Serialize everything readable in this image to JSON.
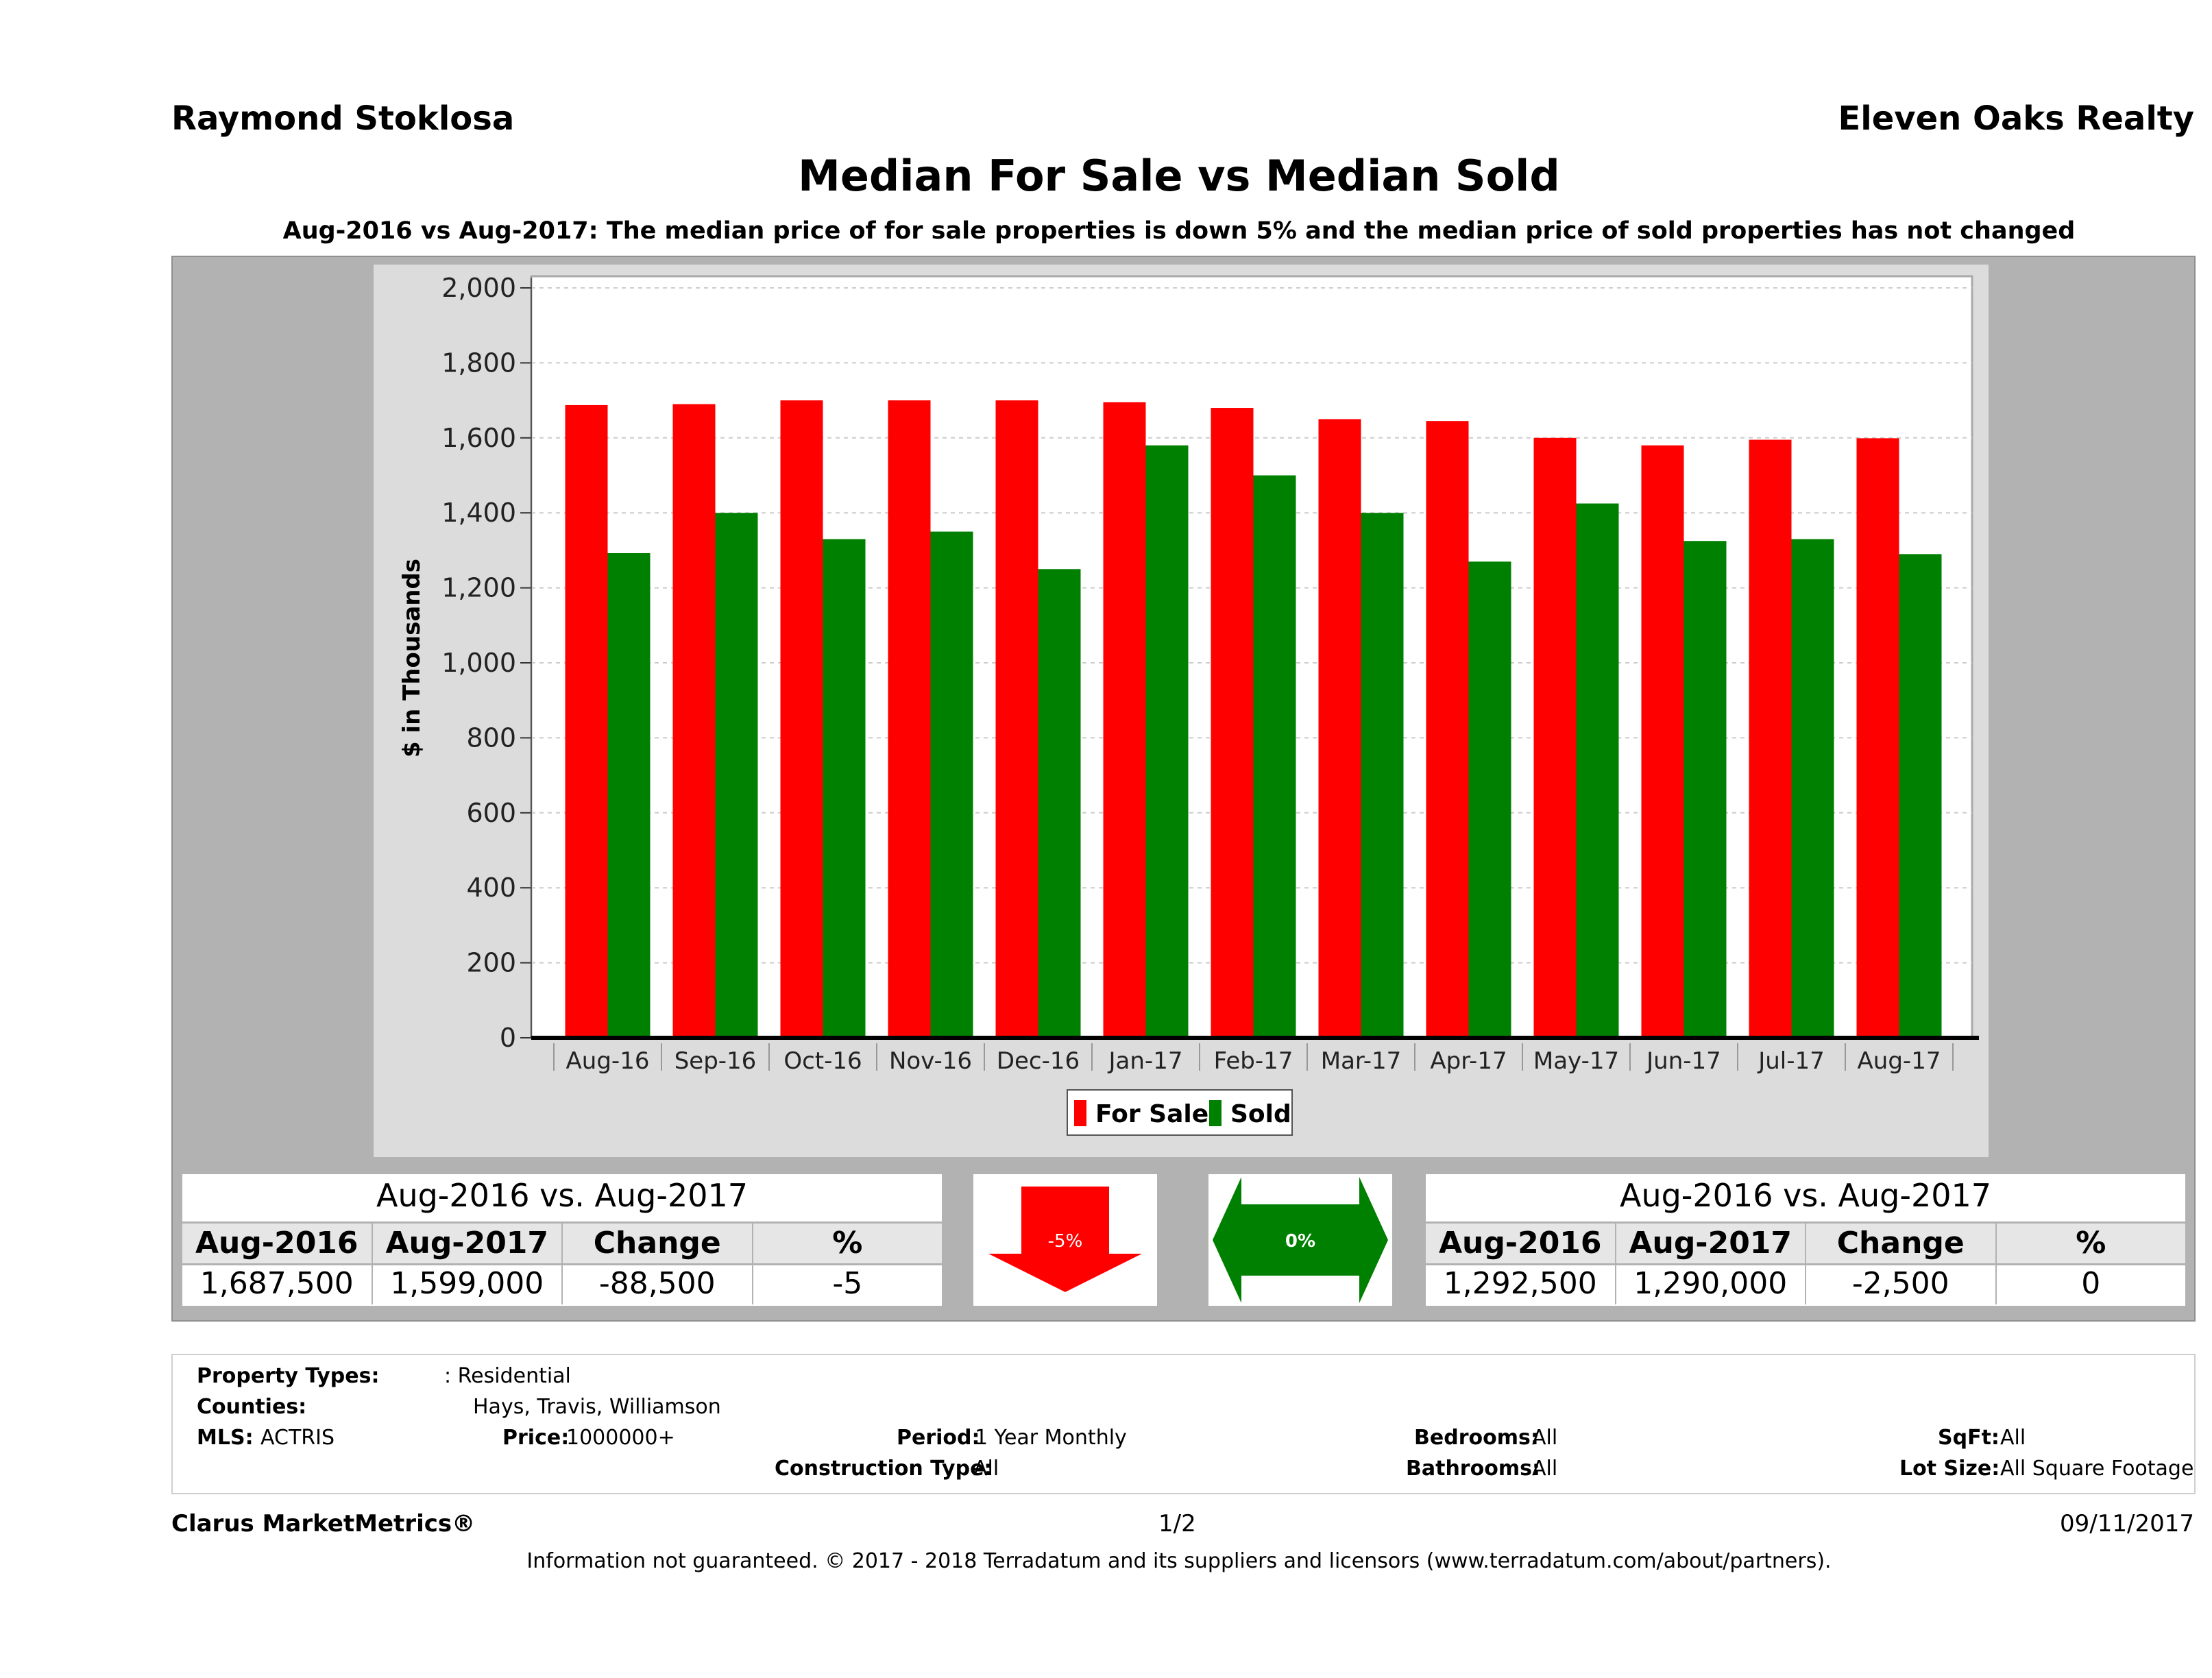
{
  "header": {
    "agent": "Raymond Stoklosa",
    "brokerage": "Eleven Oaks Realty",
    "title": "Median For Sale vs Median Sold",
    "subtitle": "Aug-2016 vs Aug-2017: The median price of for sale properties is down 5% and the median price of sold properties has not changed"
  },
  "chart_data": {
    "type": "bar",
    "title": "Median For Sale vs Median Sold",
    "ylabel": "$ in Thousands",
    "xlabel": "",
    "ylim": [
      0,
      2000
    ],
    "yticks": [
      "0",
      "200",
      "400",
      "600",
      "800",
      "1,000",
      "1,200",
      "1,400",
      "1,600",
      "1,800",
      "2,000"
    ],
    "grid": true,
    "legend_position": "bottom",
    "categories": [
      "Aug-16",
      "Sep-16",
      "Oct-16",
      "Nov-16",
      "Dec-16",
      "Jan-17",
      "Feb-17",
      "Mar-17",
      "Apr-17",
      "May-17",
      "Jun-17",
      "Jul-17",
      "Aug-17"
    ],
    "series": [
      {
        "name": "For Sale",
        "color": "#ff0000",
        "values": [
          1687.5,
          1690,
          1700,
          1700,
          1700,
          1695,
          1680,
          1650,
          1645,
          1600,
          1580,
          1595,
          1599
        ]
      },
      {
        "name": "Sold",
        "color": "#008000",
        "values": [
          1292.5,
          1400,
          1330,
          1350,
          1250,
          1580,
          1500,
          1400,
          1270,
          1425,
          1325,
          1330,
          1290
        ]
      }
    ]
  },
  "for_sale_table": {
    "title": "Aug-2016 vs. Aug-2017",
    "headers": [
      "Aug-2016",
      "Aug-2017",
      "Change",
      "%"
    ],
    "values": [
      "1,687,500",
      "1,599,000",
      "-88,500",
      "-5"
    ]
  },
  "sold_table": {
    "title": "Aug-2016 vs. Aug-2017",
    "headers": [
      "Aug-2016",
      "Aug-2017",
      "Change",
      "%"
    ],
    "values": [
      "1,292,500",
      "1,290,000",
      "-2,500",
      "0"
    ]
  },
  "indicators": {
    "for_sale_change": "-5%",
    "sold_change": "0%",
    "down_color": "#ff0000",
    "flat_color": "#008000"
  },
  "filters": {
    "property_types_label": "Property Types:",
    "property_types_value": ": Residential",
    "counties_label": "Counties:",
    "counties_value": "Hays, Travis, Williamson",
    "mls_label": "MLS:",
    "mls_value": "ACTRIS",
    "price_label": "Price:",
    "price_value": "1000000+",
    "period_label": "Period:",
    "period_value": "1 Year Monthly",
    "construction_label": "Construction Type:",
    "construction_value": "All",
    "bedrooms_label": "Bedrooms:",
    "bedrooms_value": "All",
    "bathrooms_label": "Bathrooms:",
    "bathrooms_value": "All",
    "sqft_label": "SqFt:",
    "sqft_value": "All",
    "lot_label": "Lot Size:",
    "lot_value": "All Square Footage"
  },
  "footer": {
    "brand": "Clarus MarketMetrics®",
    "page": "1/2",
    "date": "09/11/2017",
    "disclaimer": "Information not guaranteed. © 2017 - 2018 Terradatum and its suppliers and licensors (www.terradatum.com/about/partners)."
  }
}
